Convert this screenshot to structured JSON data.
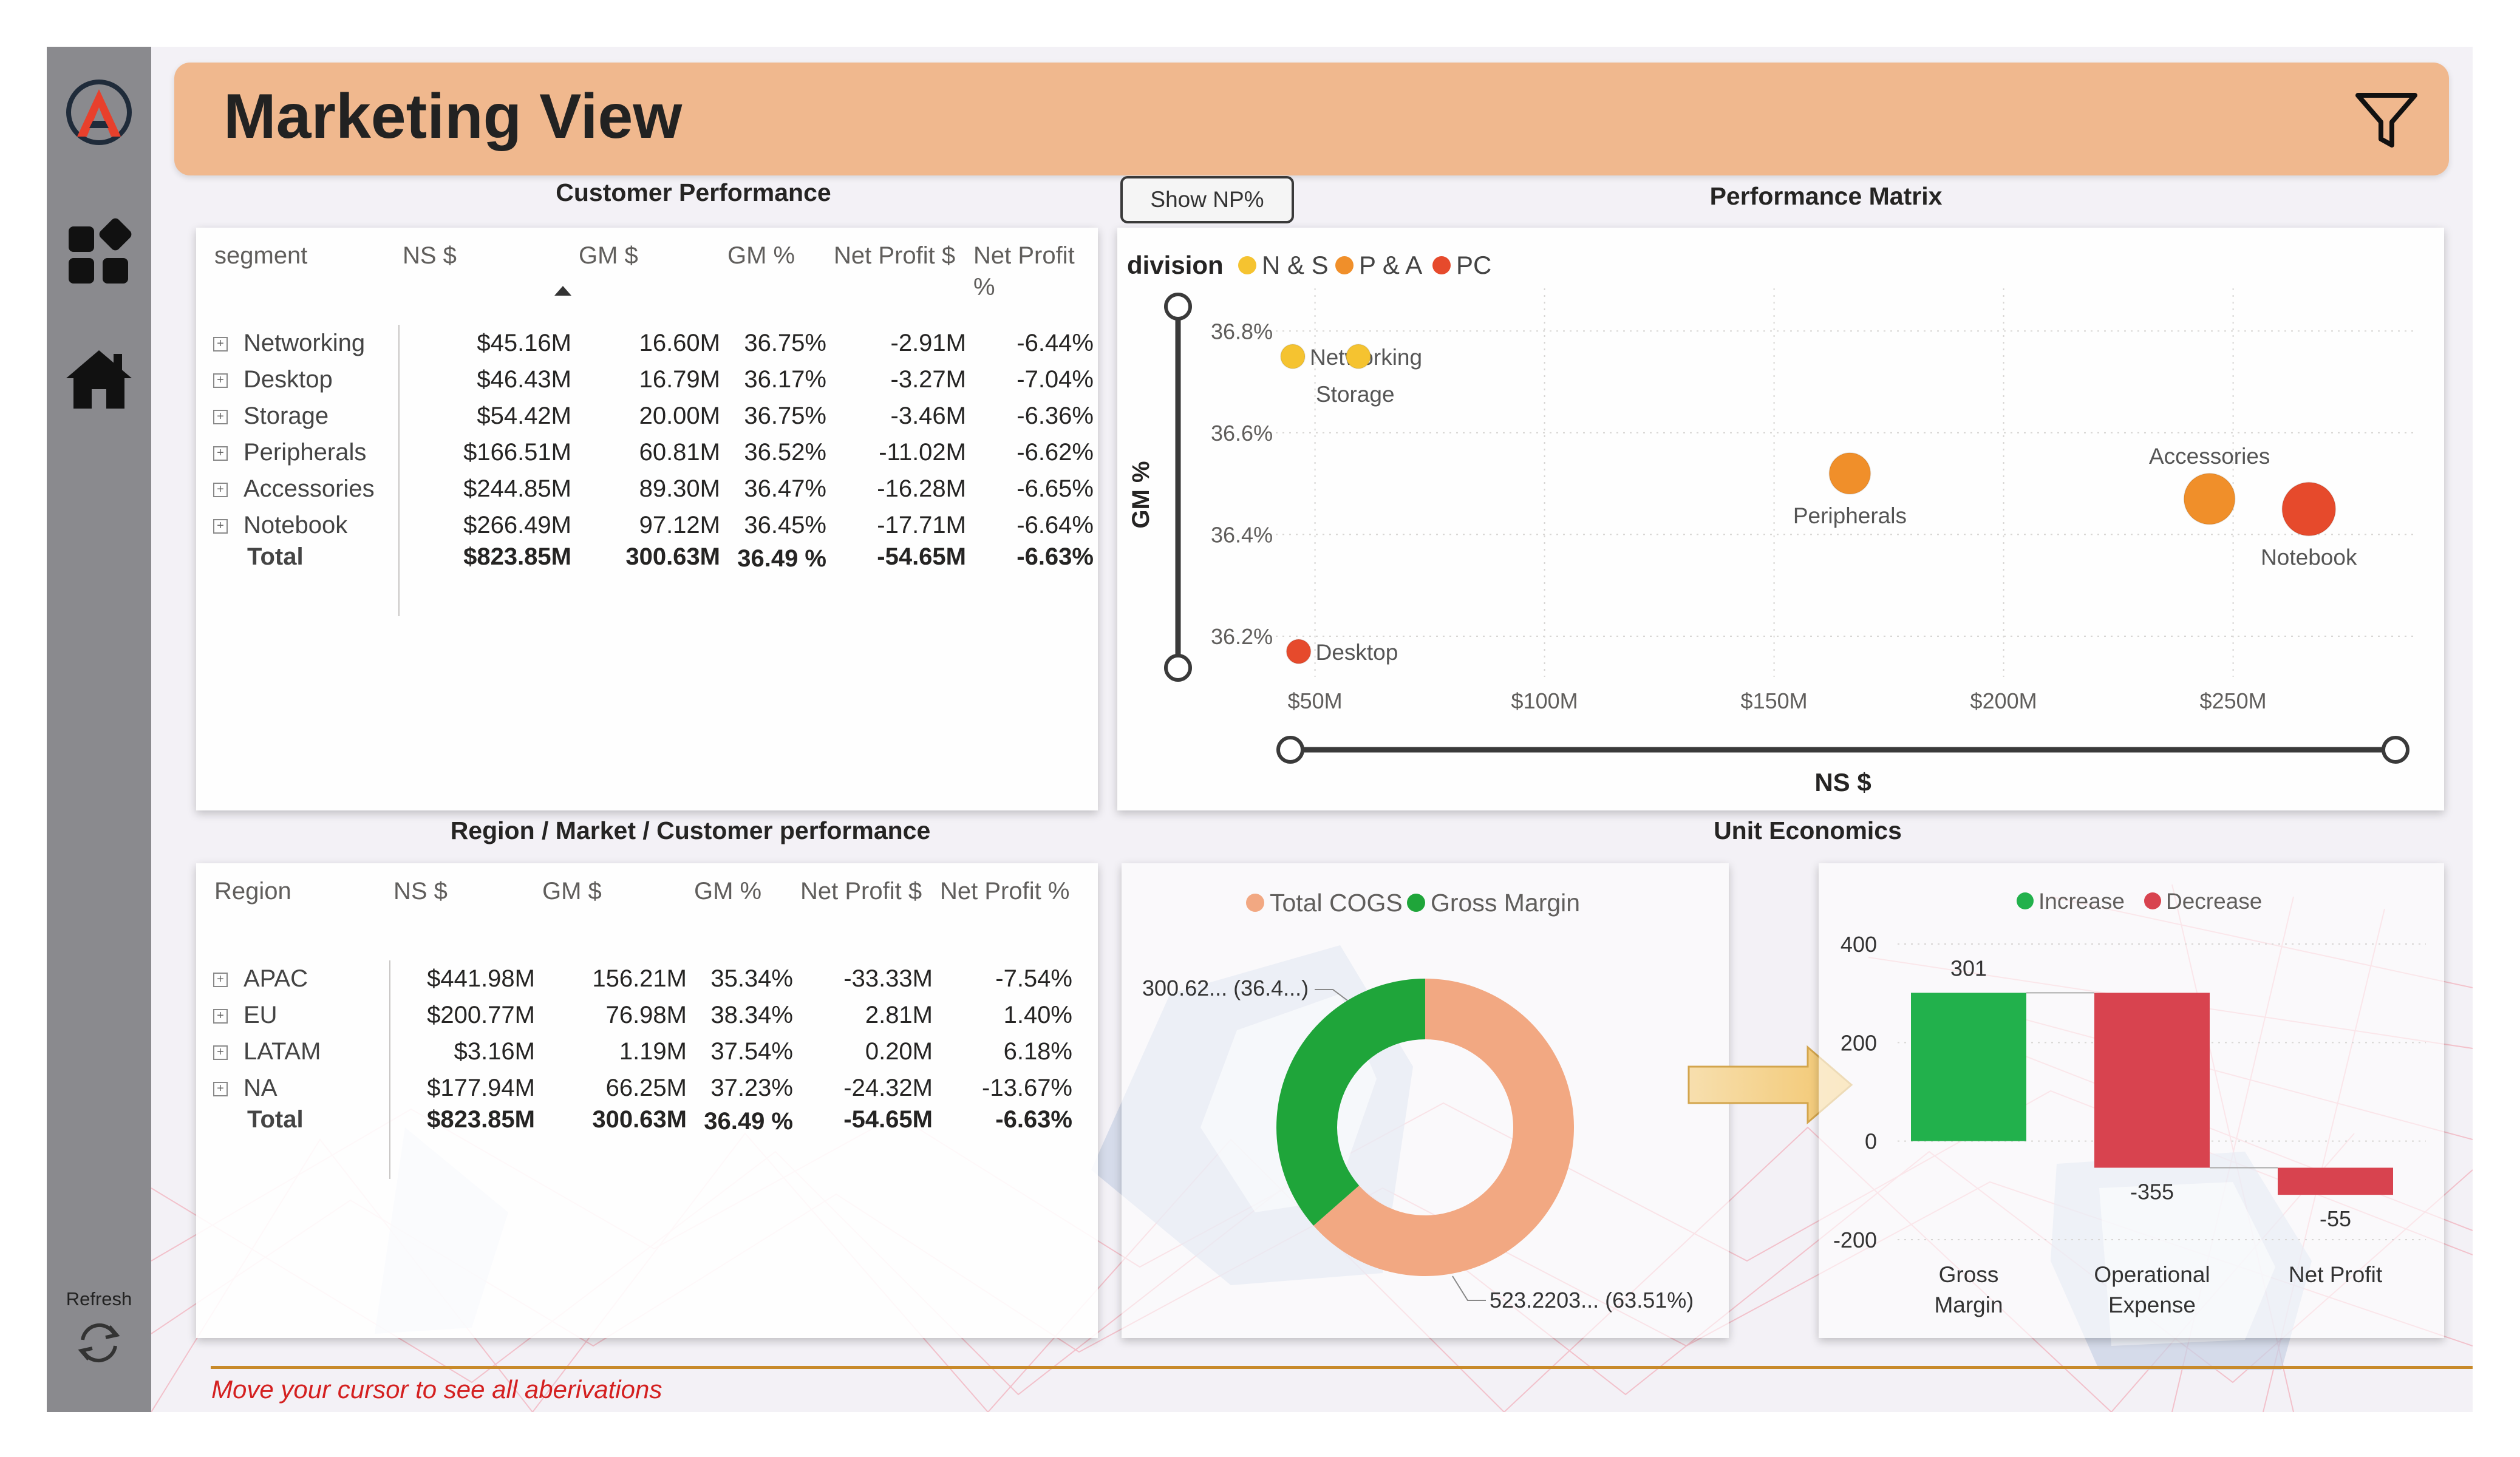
{
  "header": {
    "title": "Marketing View"
  },
  "sidebar": {
    "refresh_label": "Refresh"
  },
  "customer_performance": {
    "title": "Customer Performance",
    "columns": [
      "segment",
      "NS $",
      "GM $",
      "GM %",
      "Net Profit $",
      "Net Profit %"
    ],
    "rows": [
      [
        "Networking",
        "$45.16M",
        "16.60M",
        "36.75%",
        "-2.91M",
        "-6.44%"
      ],
      [
        "Desktop",
        "$46.43M",
        "16.79M",
        "36.17%",
        "-3.27M",
        "-7.04%"
      ],
      [
        "Storage",
        "$54.42M",
        "20.00M",
        "36.75%",
        "-3.46M",
        "-6.36%"
      ],
      [
        "Peripherals",
        "$166.51M",
        "60.81M",
        "36.52%",
        "-11.02M",
        "-6.62%"
      ],
      [
        "Accessories",
        "$244.85M",
        "89.30M",
        "36.47%",
        "-16.28M",
        "-6.65%"
      ],
      [
        "Notebook",
        "$266.49M",
        "97.12M",
        "36.45%",
        "-17.71M",
        "-6.64%"
      ]
    ],
    "total": [
      "Total",
      "$823.85M",
      "300.63M",
      "36.49 %",
      "-54.65M",
      "-6.63%"
    ]
  },
  "region_performance": {
    "title": "Region / Market / Customer performance",
    "columns": [
      "Region",
      "NS $",
      "GM $",
      "GM %",
      "Net Profit $",
      "Net Profit %"
    ],
    "rows": [
      [
        "APAC",
        "$441.98M",
        "156.21M",
        "35.34%",
        "-33.33M",
        "-7.54%"
      ],
      [
        "EU",
        "$200.77M",
        "76.98M",
        "38.34%",
        "2.81M",
        "1.40%"
      ],
      [
        "LATAM",
        "$3.16M",
        "1.19M",
        "37.54%",
        "0.20M",
        "6.18%"
      ],
      [
        "NA",
        "$177.94M",
        "66.25M",
        "37.23%",
        "-24.32M",
        "-13.67%"
      ]
    ],
    "total": [
      "Total",
      "$823.85M",
      "300.63M",
      "36.49 %",
      "-54.65M",
      "-6.63%"
    ]
  },
  "show_np_button": "Show NP%",
  "unit_economics_title": "Unit Economics",
  "footer_note": "Move your cursor to see all aberivations",
  "colors": {
    "header_bg": "#f0b88e",
    "n_and_s": "#f5c330",
    "p_and_a": "#f08f2a",
    "pc": "#e64a2c",
    "total_cogs": "#f2a882",
    "gross_margin": "#1fa53a",
    "increase": "#22b14c",
    "decrease": "#d8434f"
  },
  "chart_data": [
    {
      "type": "scatter",
      "title": "Performance Matrix",
      "xlabel": "NS $",
      "ylabel": "GM %",
      "legend_title": "division",
      "legend": [
        "N & S",
        "P & A",
        "PC"
      ],
      "xlim": [
        40,
        290
      ],
      "ylim": [
        36.12,
        36.86
      ],
      "x_ticks": [
        50,
        100,
        150,
        200,
        250
      ],
      "x_tick_labels": [
        "$50M",
        "$100M",
        "$150M",
        "$200M",
        "$250M"
      ],
      "y_ticks": [
        36.2,
        36.4,
        36.6,
        36.8
      ],
      "y_tick_labels": [
        "36.2%",
        "36.4%",
        "36.6%",
        "36.8%"
      ],
      "points": [
        {
          "label": "Networking",
          "division": "N & S",
          "x": 45.16,
          "y": 36.75
        },
        {
          "label": "Storage",
          "division": "N & S",
          "x": 54.42,
          "y": 36.75
        },
        {
          "label": "Desktop",
          "division": "PC",
          "x": 46.43,
          "y": 36.17
        },
        {
          "label": "Peripherals",
          "division": "P & A",
          "x": 166.51,
          "y": 36.52
        },
        {
          "label": "Accessories",
          "division": "P & A",
          "x": 244.85,
          "y": 36.47
        },
        {
          "label": "Notebook",
          "division": "PC",
          "x": 266.49,
          "y": 36.45
        }
      ]
    },
    {
      "type": "pie",
      "legend": [
        "Total COGS",
        "Gross Margin"
      ],
      "slices": [
        {
          "name": "Total COGS",
          "value": 523.2203,
          "label": "523.2203... (63.51%)"
        },
        {
          "name": "Gross Margin",
          "value": 300.62,
          "label": "300.62... (36.4...)"
        }
      ]
    },
    {
      "type": "bar",
      "subtype": "waterfall",
      "legend": [
        "Increase",
        "Decrease"
      ],
      "categories": [
        "Gross Margin",
        "Operational Expense",
        "Net Profit"
      ],
      "values": [
        301,
        -355,
        -55
      ],
      "data_labels": [
        "301",
        "-355",
        "-55"
      ],
      "ylim": [
        -200,
        400
      ],
      "y_ticks": [
        -200,
        0,
        200,
        400
      ]
    }
  ]
}
